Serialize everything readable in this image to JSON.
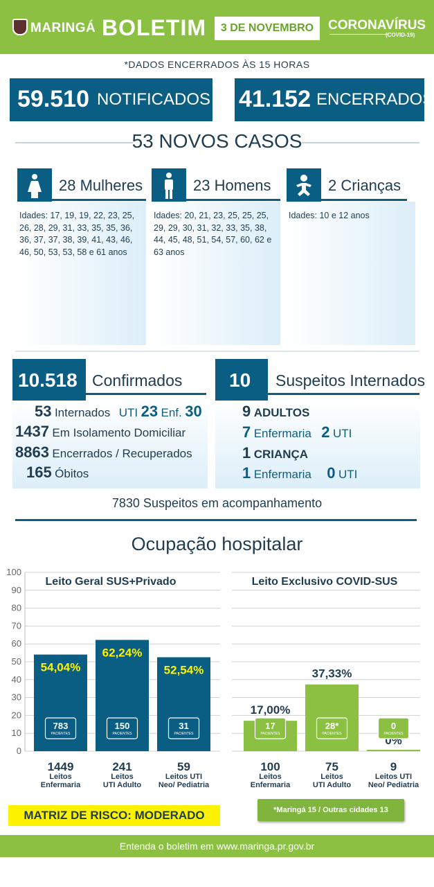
{
  "header": {
    "logo_text": "MARINGÁ",
    "title": "BOLETIM",
    "date": "3 DE NOVEMBRO",
    "virus_title": "CORONAVÍRUS",
    "virus_subtitle": "(COVID-19)"
  },
  "data_note": "*DADOS ENCERRADOS ÀS 15 HORAS",
  "notified": {
    "value": "59.510",
    "label": "NOTIFICADOS"
  },
  "closed": {
    "value": "41.152",
    "label": "ENCERRADOS"
  },
  "new_cases": "53 NOVOS CASOS",
  "demographics": [
    {
      "title": "28 Mulheres",
      "icon": "woman-icon",
      "ages": "Idades: 17, 19, 19, 22, 23, 25, 26, 28, 29, 31, 33, 35, 35, 36, 36, 37, 37, 38, 39, 41, 43, 46, 46, 50, 53, 53, 58 e 61 anos"
    },
    {
      "title": "23 Homens",
      "icon": "man-icon",
      "ages": "Idades: 20, 21, 23, 25, 25, 25, 29, 29, 30, 31, 32, 33, 35, 38, 44, 45, 48, 51, 54, 57, 60, 62 e 63 anos"
    },
    {
      "title": "2 Crianças",
      "icon": "baby-icon",
      "ages": "Idades: 10 e 12 anos"
    }
  ],
  "confirmed": {
    "value": "10.518",
    "label": "Confirmados",
    "hospitalized_num": "53",
    "hospitalized_label": "Internados",
    "uti_label": "UTI",
    "uti_num": "23",
    "enf_label": "Enf.",
    "enf_num": "30",
    "isolation_num": "1437",
    "isolation_label": "Em Isolamento Domiciliar",
    "recovered_num": "8863",
    "recovered_label": "Encerrados / Recuperados",
    "deaths_num": "165",
    "deaths_label": "Óbitos"
  },
  "suspects": {
    "value": "10",
    "label": "Suspeitos Internados",
    "adults_num": "9",
    "adults_label": "ADULTOS",
    "adult_ward_num": "7",
    "ward_label": "Enfermaria",
    "adult_uti_num": "2",
    "uti_label": "UTI",
    "child_num": "1",
    "child_label": "CRIANÇA",
    "child_ward_num": "1",
    "child_uti_num": "0"
  },
  "followup": "7830 Suspeitos em acompanhamento",
  "occupancy_title": "Ocupação hospitalar",
  "chart_data": [
    {
      "type": "bar",
      "title": "Leito Geral SUS+Privado",
      "ylim": [
        0,
        100
      ],
      "yticks": [
        0,
        10,
        20,
        30,
        40,
        50,
        60,
        70,
        80,
        90,
        100
      ],
      "grid": true,
      "categories": [
        "Leitos Enfermaria",
        "Leitos UTI Adulto",
        "Leitos UTI Neo/ Pediatria"
      ],
      "values": [
        54.04,
        62.24,
        52.54
      ],
      "value_labels": [
        "54,04%",
        "62,24%",
        "52,54%"
      ],
      "patients": [
        "783",
        "150",
        "31"
      ],
      "beds": [
        "1449",
        "241",
        "59"
      ],
      "cat_line1": [
        "Leitos",
        "Leitos",
        "Leitos UTI"
      ],
      "cat_line2": [
        "Enfermaria",
        "UTI Adulto",
        "Neo/ Pediatria"
      ],
      "patients_label": "PACIENTES",
      "bar_color": "#0b5e83"
    },
    {
      "type": "bar",
      "title": "Leito Exclusivo COVID-SUS",
      "ylim": [
        0,
        100
      ],
      "grid": true,
      "categories": [
        "Leitos Enfermaria",
        "Leitos UTI Adulto",
        "Leitos UTI Neo/ Pediatria"
      ],
      "values": [
        17.0,
        37.33,
        0
      ],
      "value_labels": [
        "17,00%",
        "37,33%",
        "0%"
      ],
      "patients": [
        "17",
        "28*",
        "0"
      ],
      "beds": [
        "100",
        "75",
        "9"
      ],
      "cat_line1": [
        "Leitos",
        "Leitos",
        "Leitos UTI"
      ],
      "cat_line2": [
        "Enfermaria",
        "UTI Adulto",
        "Neo/ Pediatria"
      ],
      "patients_label": "PACIENTES",
      "bar_color": "#8cc043"
    }
  ],
  "risk_matrix": "MATRIZ DE RISCO: MODERADO",
  "covid_note": "*Maringá 15 / Outras cidades 13",
  "footer": "Entenda o boletim em www.maringa.pr.gov.br"
}
